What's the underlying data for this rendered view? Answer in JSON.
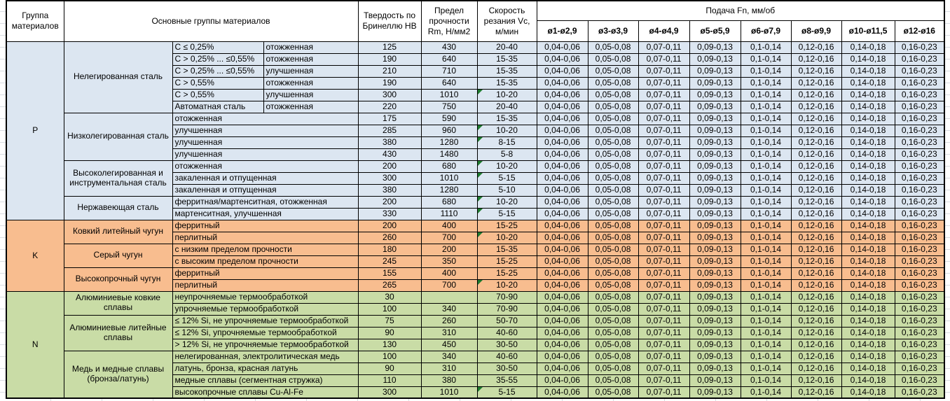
{
  "header": {
    "group": "Группа материалов",
    "main_groups": "Основные группы материалов",
    "hardness": "Твердость по Бринеллю HB",
    "strength": "Предел прочности Rm, Н/мм2",
    "speed": "Скорость резания Vc, м/мин",
    "feed": "Подача Fn, мм/об",
    "feed_cols": [
      "ø1-ø2,9",
      "ø3-ø3,9",
      "ø4-ø4,9",
      "ø5-ø5,9",
      "ø6-ø7,9",
      "ø8-ø9,9",
      "ø10-ø11,5",
      "ø12-ø16"
    ]
  },
  "feed_values": [
    "0,04-0,06",
    "0,05-0,08",
    "0,07-0,11",
    "0,09-0,13",
    "0,1-0,14",
    "0,12-0,16",
    "0,14-0,18",
    "0,16-0,23"
  ],
  "colors": {
    "p": "#dce6f1",
    "k": "#f8bd8f",
    "n": "#c9dca6",
    "flag": "#1e7b2e"
  },
  "sections": [
    {
      "code": "P",
      "color_key": "p",
      "groups": [
        {
          "name": "Нелегированная сталь",
          "rows": [
            {
              "sub": "C ≤ 0,25%",
              "state": "отожженная",
              "hb": "125",
              "rm": "430",
              "vc": "20-40",
              "flag": false
            },
            {
              "sub": "C > 0,25% ... ≤0,55%",
              "state": "отожженная",
              "hb": "190",
              "rm": "640",
              "vc": "15-35",
              "flag": false
            },
            {
              "sub": "C > 0,25% ... ≤0,55%",
              "state": "улучшенная",
              "hb": "210",
              "rm": "710",
              "vc": "15-35",
              "flag": false
            },
            {
              "sub": "C > 0,55%",
              "state": "отожженная",
              "hb": "190",
              "rm": "640",
              "vc": "15-35",
              "flag": false
            },
            {
              "sub": "C > 0,55%",
              "state": "улучшенная",
              "hb": "300",
              "rm": "1010",
              "vc": "10-20",
              "flag": true
            },
            {
              "sub": "Автоматная сталь",
              "state": "отожженная",
              "hb": "220",
              "rm": "750",
              "vc": "20-40",
              "flag": false
            }
          ]
        },
        {
          "name": "Низколегированная сталь",
          "rows": [
            {
              "desc": "отожженная",
              "hb": "175",
              "rm": "590",
              "vc": "15-35",
              "flag": false
            },
            {
              "desc": "улучшенная",
              "hb": "285",
              "rm": "960",
              "vc": "10-20",
              "flag": true
            },
            {
              "desc": "улучшенная",
              "hb": "380",
              "rm": "1280",
              "vc": "8-15",
              "flag": true
            },
            {
              "desc": "улучшенная",
              "hb": "430",
              "rm": "1480",
              "vc": "5-8",
              "flag": false
            }
          ]
        },
        {
          "name": "Высоколегированная и инструментальная сталь",
          "rows": [
            {
              "desc": "отожженная",
              "hb": "200",
              "rm": "680",
              "vc": "10-20",
              "flag": true
            },
            {
              "desc": "закаленная и отпущенная",
              "hb": "300",
              "rm": "1010",
              "vc": "5-15",
              "flag": true
            },
            {
              "desc": "закаленная и отпущенная",
              "hb": "380",
              "rm": "1280",
              "vc": "5-10",
              "flag": false
            }
          ]
        },
        {
          "name": "Нержавеющая сталь",
          "rows": [
            {
              "desc": "ферритная/мартенситная, отожженная",
              "hb": "200",
              "rm": "680",
              "vc": "10-20",
              "flag": true
            },
            {
              "desc": "мартенситная, улучшенная",
              "hb": "330",
              "rm": "1110",
              "vc": "5-15",
              "flag": true
            }
          ]
        }
      ]
    },
    {
      "code": "K",
      "color_key": "k",
      "groups": [
        {
          "name": "Ковкий литейный чугун",
          "rows": [
            {
              "desc": "ферритный",
              "hb": "200",
              "rm": "400",
              "vc": "15-25",
              "flag": false
            },
            {
              "desc": "перлитный",
              "hb": "260",
              "rm": "700",
              "vc": "10-20",
              "flag": true
            }
          ]
        },
        {
          "name": "Серый чугун",
          "rows": [
            {
              "desc": "с низким пределом прочности",
              "hb": "180",
              "rm": "200",
              "vc": "15-35",
              "flag": false
            },
            {
              "desc": "с высоким пределом прочности",
              "hb": "245",
              "rm": "350",
              "vc": "15-25",
              "flag": false
            }
          ]
        },
        {
          "name": "Высокопрочный чугун",
          "rows": [
            {
              "desc": "ферритный",
              "hb": "155",
              "rm": "400",
              "vc": "15-25",
              "flag": false
            },
            {
              "desc": "перлитный",
              "hb": "265",
              "rm": "700",
              "vc": "10-20",
              "flag": true
            }
          ]
        }
      ]
    },
    {
      "code": "N",
      "color_key": "n",
      "groups": [
        {
          "name": "Алюминиевые ковкие сплавы",
          "rows": [
            {
              "desc": "неупрочняемые термообработкой",
              "hb": "30",
              "rm": "",
              "vc": "70-90",
              "flag": false
            },
            {
              "desc": "упрочняемые термообработкой",
              "hb": "100",
              "rm": "340",
              "vc": "70-90",
              "flag": false
            }
          ]
        },
        {
          "name": "Алюминиевые литейные сплавы",
          "rows": [
            {
              "desc": "≤ 12% Si, не упрочняемые термообработкой",
              "hb": "75",
              "rm": "260",
              "vc": "50-70",
              "flag": false
            },
            {
              "desc": "≤ 12% Si, упрочняемые термообработкой",
              "hb": "90",
              "rm": "310",
              "vc": "40-60",
              "flag": false
            },
            {
              "desc": "> 12% Si, не упрочняемые термообработкой",
              "hb": "130",
              "rm": "450",
              "vc": "30-50",
              "flag": false
            }
          ]
        },
        {
          "name": "Медь и медные сплавы (бронза/латунь)",
          "rows": [
            {
              "desc": "нелегированная, электролитическая медь",
              "hb": "100",
              "rm": "340",
              "vc": "40-60",
              "flag": false
            },
            {
              "desc": "латунь, бронза, красная латунь",
              "hb": "90",
              "rm": "310",
              "vc": "30-50",
              "flag": false
            },
            {
              "desc": "медные сплавы (сегментная стружка)",
              "hb": "110",
              "rm": "380",
              "vc": "35-55",
              "flag": false
            },
            {
              "desc": "высокопрочные сплавы Cu-Al-Fe",
              "hb": "300",
              "rm": "1010",
              "vc": "5-15",
              "flag": true
            }
          ]
        }
      ]
    }
  ]
}
